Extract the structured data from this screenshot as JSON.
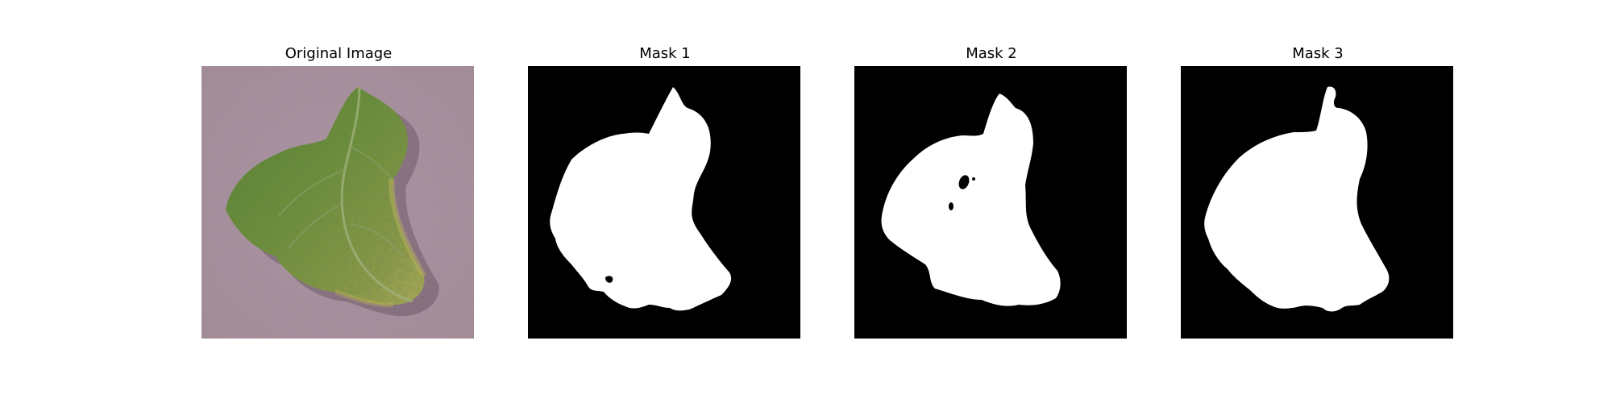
{
  "panels": [
    {
      "title": "Original Image"
    },
    {
      "title": "Mask 1"
    },
    {
      "title": "Mask 2"
    },
    {
      "title": "Mask 3"
    }
  ],
  "colors": {
    "background": "#a58c9a",
    "leaf_dark": "#3f5f2a",
    "leaf_mid": "#6f8a3c",
    "leaf_light": "#a7a84f",
    "mask_background": "#000000",
    "mask_foreground": "#ffffff"
  }
}
